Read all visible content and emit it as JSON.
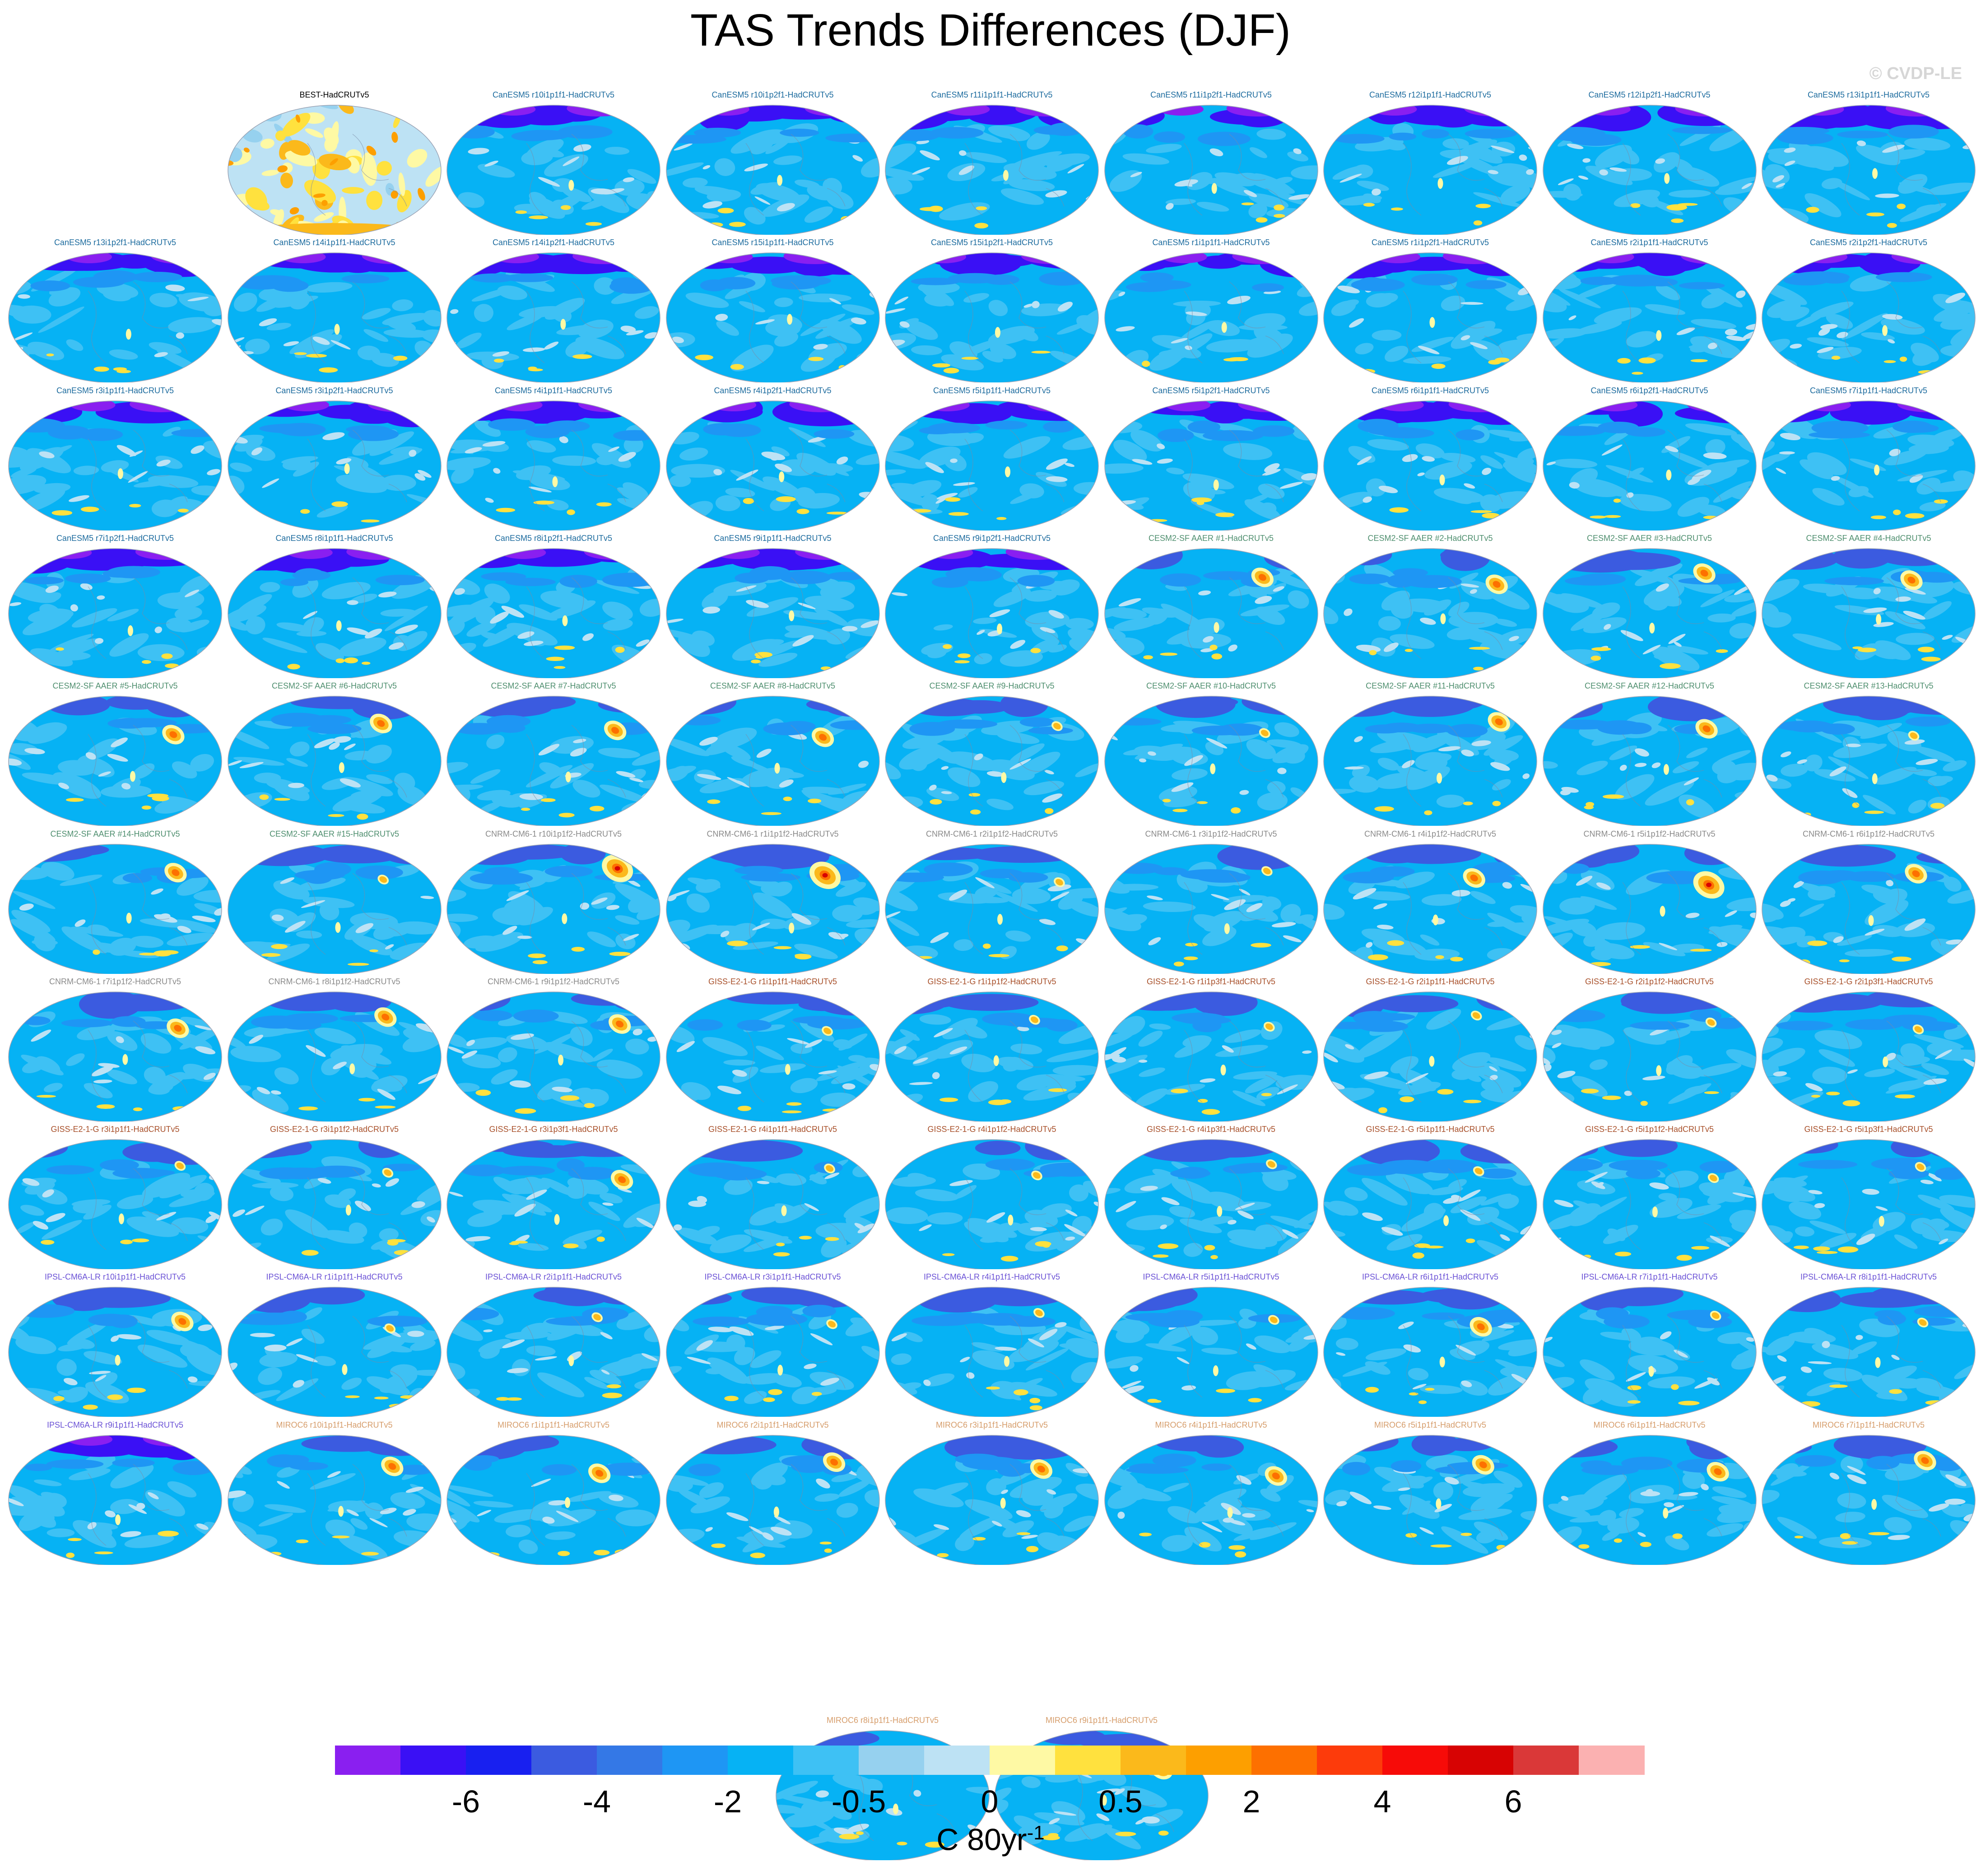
{
  "title": "TAS Trends Differences (DJF)",
  "watermark": "© CVDP-LE",
  "colorbar": {
    "colors": [
      "#8a1ff0",
      "#3a10f5",
      "#1820f0",
      "#3b5be0",
      "#3478e6",
      "#1e96f4",
      "#06b2f4",
      "#3ec1f4",
      "#96d1ef",
      "#bde2f4",
      "#fef9a4",
      "#ffe13e",
      "#fbb91b",
      "#fd9f00",
      "#fd7000",
      "#fd3b0b",
      "#f70b08",
      "#d70303",
      "#da3838",
      "#fbb1b1"
    ],
    "labels": [
      "-6",
      "-4",
      "-2",
      "-0.5",
      "0",
      "0.5",
      "2",
      "4",
      "6"
    ],
    "units": "C 80yr",
    "units_exponent": "-1"
  },
  "model_colors": {
    "BEST": "#000000",
    "CanESM5": "#1c6b9e",
    "CESM2-SF AAER": "#4f8f6f",
    "CNRM-CM6-1": "#8a8a8a",
    "GISS-E2-1-G": "#a8502a",
    "IPSL-CM6A-LR": "#6b52d6",
    "MIROC6": "#d69d6b"
  },
  "panels": [
    {
      "title": "BEST-HadCRUTv5",
      "model": "BEST",
      "style": "obs"
    },
    {
      "title": "CanESM5 r10i1p1f1-HadCRUTv5",
      "model": "CanESM5",
      "style": "can"
    },
    {
      "title": "CanESM5 r10i1p2f1-HadCRUTv5",
      "model": "CanESM5",
      "style": "can"
    },
    {
      "title": "CanESM5 r11i1p1f1-HadCRUTv5",
      "model": "CanESM5",
      "style": "can"
    },
    {
      "title": "CanESM5 r11i1p2f1-HadCRUTv5",
      "model": "CanESM5",
      "style": "can"
    },
    {
      "title": "CanESM5 r12i1p1f1-HadCRUTv5",
      "model": "CanESM5",
      "style": "can"
    },
    {
      "title": "CanESM5 r12i1p2f1-HadCRUTv5",
      "model": "CanESM5",
      "style": "can"
    },
    {
      "title": "CanESM5 r13i1p1f1-HadCRUTv5",
      "model": "CanESM5",
      "style": "can"
    },
    {
      "title": "CanESM5 r13i1p2f1-HadCRUTv5",
      "model": "CanESM5",
      "style": "can"
    },
    {
      "title": "CanESM5 r14i1p1f1-HadCRUTv5",
      "model": "CanESM5",
      "style": "can"
    },
    {
      "title": "CanESM5 r14i1p2f1-HadCRUTv5",
      "model": "CanESM5",
      "style": "can"
    },
    {
      "title": "CanESM5 r15i1p1f1-HadCRUTv5",
      "model": "CanESM5",
      "style": "can"
    },
    {
      "title": "CanESM5 r15i1p2f1-HadCRUTv5",
      "model": "CanESM5",
      "style": "can"
    },
    {
      "title": "CanESM5 r1i1p1f1-HadCRUTv5",
      "model": "CanESM5",
      "style": "can"
    },
    {
      "title": "CanESM5 r1i1p2f1-HadCRUTv5",
      "model": "CanESM5",
      "style": "can"
    },
    {
      "title": "CanESM5 r2i1p1f1-HadCRUTv5",
      "model": "CanESM5",
      "style": "can"
    },
    {
      "title": "CanESM5 r2i1p2f1-HadCRUTv5",
      "model": "CanESM5",
      "style": "can"
    },
    {
      "title": "CanESM5 r3i1p1f1-HadCRUTv5",
      "model": "CanESM5",
      "style": "can"
    },
    {
      "title": "CanESM5 r3i1p2f1-HadCRUTv5",
      "model": "CanESM5",
      "style": "can"
    },
    {
      "title": "CanESM5 r4i1p1f1-HadCRUTv5",
      "model": "CanESM5",
      "style": "can"
    },
    {
      "title": "CanESM5 r4i1p2f1-HadCRUTv5",
      "model": "CanESM5",
      "style": "can"
    },
    {
      "title": "CanESM5 r5i1p1f1-HadCRUTv5",
      "model": "CanESM5",
      "style": "can"
    },
    {
      "title": "CanESM5 r5i1p2f1-HadCRUTv5",
      "model": "CanESM5",
      "style": "can"
    },
    {
      "title": "CanESM5 r6i1p1f1-HadCRUTv5",
      "model": "CanESM5",
      "style": "can"
    },
    {
      "title": "CanESM5 r6i1p2f1-HadCRUTv5",
      "model": "CanESM5",
      "style": "can"
    },
    {
      "title": "CanESM5 r7i1p1f1-HadCRUTv5",
      "model": "CanESM5",
      "style": "can"
    },
    {
      "title": "CanESM5 r7i1p2f1-HadCRUTv5",
      "model": "CanESM5",
      "style": "can"
    },
    {
      "title": "CanESM5 r8i1p1f1-HadCRUTv5",
      "model": "CanESM5",
      "style": "can"
    },
    {
      "title": "CanESM5 r8i1p2f1-HadCRUTv5",
      "model": "CanESM5",
      "style": "can"
    },
    {
      "title": "CanESM5 r9i1p1f1-HadCRUTv5",
      "model": "CanESM5",
      "style": "can"
    },
    {
      "title": "CanESM5 r9i1p2f1-HadCRUTv5",
      "model": "CanESM5",
      "style": "can"
    },
    {
      "title": "CESM2-SF AAER #1-HadCRUTv5",
      "model": "CESM2-SF AAER",
      "style": "hot"
    },
    {
      "title": "CESM2-SF AAER #2-HadCRUTv5",
      "model": "CESM2-SF AAER",
      "style": "hot"
    },
    {
      "title": "CESM2-SF AAER #3-HadCRUTv5",
      "model": "CESM2-SF AAER",
      "style": "hot"
    },
    {
      "title": "CESM2-SF AAER #4-HadCRUTv5",
      "model": "CESM2-SF AAER",
      "style": "hot"
    },
    {
      "title": "CESM2-SF AAER #5-HadCRUTv5",
      "model": "CESM2-SF AAER",
      "style": "hot"
    },
    {
      "title": "CESM2-SF AAER #6-HadCRUTv5",
      "model": "CESM2-SF AAER",
      "style": "hot"
    },
    {
      "title": "CESM2-SF AAER #7-HadCRUTv5",
      "model": "CESM2-SF AAER",
      "style": "hot"
    },
    {
      "title": "CESM2-SF AAER #8-HadCRUTv5",
      "model": "CESM2-SF AAER",
      "style": "hot"
    },
    {
      "title": "CESM2-SF AAER #9-HadCRUTv5",
      "model": "CESM2-SF AAER",
      "style": "mild"
    },
    {
      "title": "CESM2-SF AAER #10-HadCRUTv5",
      "model": "CESM2-SF AAER",
      "style": "mild"
    },
    {
      "title": "CESM2-SF AAER #11-HadCRUTv5",
      "model": "CESM2-SF AAER",
      "style": "hot"
    },
    {
      "title": "CESM2-SF AAER #12-HadCRUTv5",
      "model": "CESM2-SF AAER",
      "style": "hot"
    },
    {
      "title": "CESM2-SF AAER #13-HadCRUTv5",
      "model": "CESM2-SF AAER",
      "style": "mild"
    },
    {
      "title": "CESM2-SF AAER #14-HadCRUTv5",
      "model": "CESM2-SF AAER",
      "style": "hot"
    },
    {
      "title": "CESM2-SF AAER #15-HadCRUTv5",
      "model": "CESM2-SF AAER",
      "style": "mild"
    },
    {
      "title": "CNRM-CM6-1 r10i1p1f2-HadCRUTv5",
      "model": "CNRM-CM6-1",
      "style": "veryhot"
    },
    {
      "title": "CNRM-CM6-1 r1i1p1f2-HadCRUTv5",
      "model": "CNRM-CM6-1",
      "style": "veryhot"
    },
    {
      "title": "CNRM-CM6-1 r2i1p1f2-HadCRUTv5",
      "model": "CNRM-CM6-1",
      "style": "mild"
    },
    {
      "title": "CNRM-CM6-1 r3i1p1f2-HadCRUTv5",
      "model": "CNRM-CM6-1",
      "style": "mild"
    },
    {
      "title": "CNRM-CM6-1 r4i1p1f2-HadCRUTv5",
      "model": "CNRM-CM6-1",
      "style": "hot"
    },
    {
      "title": "CNRM-CM6-1 r5i1p1f2-HadCRUTv5",
      "model": "CNRM-CM6-1",
      "style": "veryhot"
    },
    {
      "title": "CNRM-CM6-1 r6i1p1f2-HadCRUTv5",
      "model": "CNRM-CM6-1",
      "style": "hot"
    },
    {
      "title": "CNRM-CM6-1 r7i1p1f2-HadCRUTv5",
      "model": "CNRM-CM6-1",
      "style": "hot"
    },
    {
      "title": "CNRM-CM6-1 r8i1p1f2-HadCRUTv5",
      "model": "CNRM-CM6-1",
      "style": "hot"
    },
    {
      "title": "CNRM-CM6-1 r9i1p1f2-HadCRUTv5",
      "model": "CNRM-CM6-1",
      "style": "hot"
    },
    {
      "title": "GISS-E2-1-G r1i1p1f1-HadCRUTv5",
      "model": "GISS-E2-1-G",
      "style": "mild"
    },
    {
      "title": "GISS-E2-1-G r1i1p1f2-HadCRUTv5",
      "model": "GISS-E2-1-G",
      "style": "mild"
    },
    {
      "title": "GISS-E2-1-G r1i1p3f1-HadCRUTv5",
      "model": "GISS-E2-1-G",
      "style": "mild"
    },
    {
      "title": "GISS-E2-1-G r2i1p1f1-HadCRUTv5",
      "model": "GISS-E2-1-G",
      "style": "mild"
    },
    {
      "title": "GISS-E2-1-G r2i1p1f2-HadCRUTv5",
      "model": "GISS-E2-1-G",
      "style": "mild"
    },
    {
      "title": "GISS-E2-1-G r2i1p3f1-HadCRUTv5",
      "model": "GISS-E2-1-G",
      "style": "mild"
    },
    {
      "title": "GISS-E2-1-G r3i1p1f1-HadCRUTv5",
      "model": "GISS-E2-1-G",
      "style": "mild"
    },
    {
      "title": "GISS-E2-1-G r3i1p1f2-HadCRUTv5",
      "model": "GISS-E2-1-G",
      "style": "mild"
    },
    {
      "title": "GISS-E2-1-G r3i1p3f1-HadCRUTv5",
      "model": "GISS-E2-1-G",
      "style": "hot"
    },
    {
      "title": "GISS-E2-1-G r4i1p1f1-HadCRUTv5",
      "model": "GISS-E2-1-G",
      "style": "mild"
    },
    {
      "title": "GISS-E2-1-G r4i1p1f2-HadCRUTv5",
      "model": "GISS-E2-1-G",
      "style": "mild"
    },
    {
      "title": "GISS-E2-1-G r4i1p3f1-HadCRUTv5",
      "model": "GISS-E2-1-G",
      "style": "mild"
    },
    {
      "title": "GISS-E2-1-G r5i1p1f1-HadCRUTv5",
      "model": "GISS-E2-1-G",
      "style": "mild"
    },
    {
      "title": "GISS-E2-1-G r5i1p1f2-HadCRUTv5",
      "model": "GISS-E2-1-G",
      "style": "mild"
    },
    {
      "title": "GISS-E2-1-G r5i1p3f1-HadCRUTv5",
      "model": "GISS-E2-1-G",
      "style": "mild"
    },
    {
      "title": "IPSL-CM6A-LR r10i1p1f1-HadCRUTv5",
      "model": "IPSL-CM6A-LR",
      "style": "hot"
    },
    {
      "title": "IPSL-CM6A-LR r1i1p1f1-HadCRUTv5",
      "model": "IPSL-CM6A-LR",
      "style": "mild"
    },
    {
      "title": "IPSL-CM6A-LR r2i1p1f1-HadCRUTv5",
      "model": "IPSL-CM6A-LR",
      "style": "mild"
    },
    {
      "title": "IPSL-CM6A-LR r3i1p1f1-HadCRUTv5",
      "model": "IPSL-CM6A-LR",
      "style": "mild"
    },
    {
      "title": "IPSL-CM6A-LR r4i1p1f1-HadCRUTv5",
      "model": "IPSL-CM6A-LR",
      "style": "mild"
    },
    {
      "title": "IPSL-CM6A-LR r5i1p1f1-HadCRUTv5",
      "model": "IPSL-CM6A-LR",
      "style": "mild"
    },
    {
      "title": "IPSL-CM6A-LR r6i1p1f1-HadCRUTv5",
      "model": "IPSL-CM6A-LR",
      "style": "hot"
    },
    {
      "title": "IPSL-CM6A-LR r7i1p1f1-HadCRUTv5",
      "model": "IPSL-CM6A-LR",
      "style": "mild"
    },
    {
      "title": "IPSL-CM6A-LR r8i1p1f1-HadCRUTv5",
      "model": "IPSL-CM6A-LR",
      "style": "mild"
    },
    {
      "title": "IPSL-CM6A-LR r9i1p1f1-HadCRUTv5",
      "model": "IPSL-CM6A-LR",
      "style": "can"
    },
    {
      "title": "MIROC6 r10i1p1f1-HadCRUTv5",
      "model": "MIROC6",
      "style": "hot"
    },
    {
      "title": "MIROC6 r1i1p1f1-HadCRUTv5",
      "model": "MIROC6",
      "style": "hot"
    },
    {
      "title": "MIROC6 r2i1p1f1-HadCRUTv5",
      "model": "MIROC6",
      "style": "hot"
    },
    {
      "title": "MIROC6 r3i1p1f1-HadCRUTv5",
      "model": "MIROC6",
      "style": "hot"
    },
    {
      "title": "MIROC6 r4i1p1f1-HadCRUTv5",
      "model": "MIROC6",
      "style": "hot"
    },
    {
      "title": "MIROC6 r5i1p1f1-HadCRUTv5",
      "model": "MIROC6",
      "style": "hot"
    },
    {
      "title": "MIROC6 r6i1p1f1-HadCRUTv5",
      "model": "MIROC6",
      "style": "hot"
    },
    {
      "title": "MIROC6 r7i1p1f1-HadCRUTv5",
      "model": "MIROC6",
      "style": "hot"
    },
    {
      "title": "MIROC6 r8i1p1f1-HadCRUTv5",
      "model": "MIROC6",
      "style": "mild"
    },
    {
      "title": "MIROC6 r9i1p1f1-HadCRUTv5",
      "model": "MIROC6",
      "style": "hot"
    }
  ]
}
